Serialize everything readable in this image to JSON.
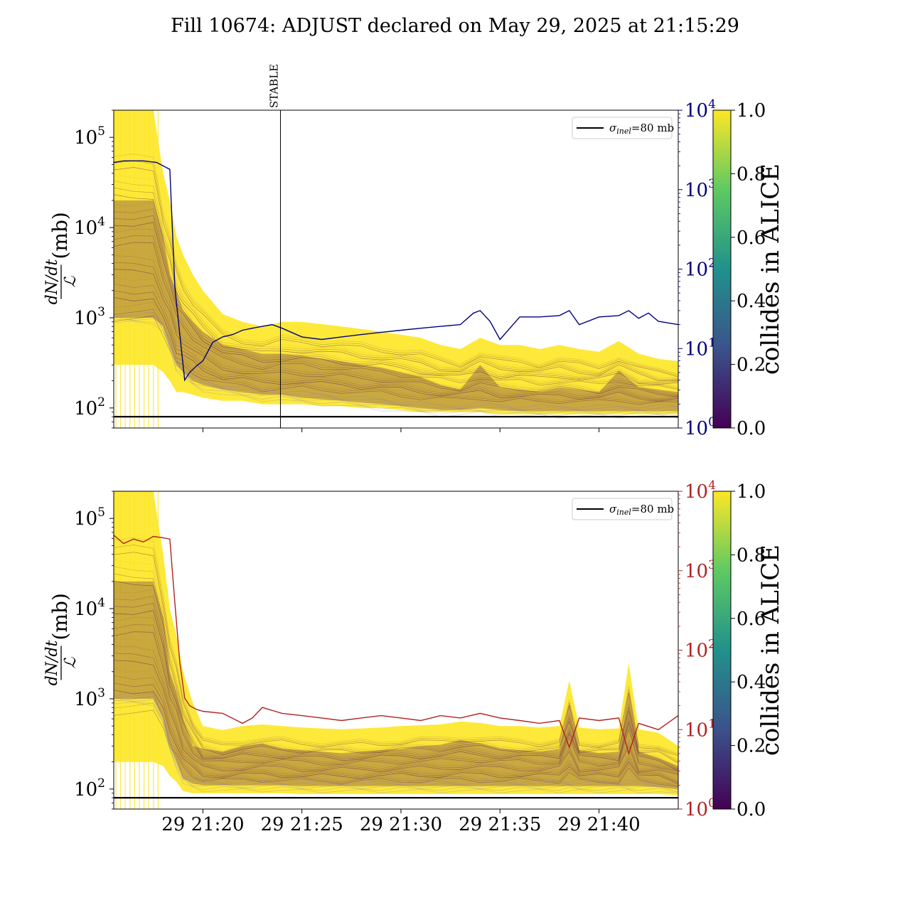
{
  "title": "Fill 10674: ADJUST declared on May 29, 2025 at 21:15:29",
  "colors": {
    "upper_right_axis": "#000080",
    "lower_right_axis": "#b22222",
    "band_high": "#fde725",
    "band_low": "#440154",
    "viridis": [
      "#440154",
      "#3b528b",
      "#21918c",
      "#5ec962",
      "#fde725"
    ]
  },
  "chart_data": [
    {
      "type": "line",
      "panel": "upper",
      "ylabel": "dN/dt / ℒ (mb)",
      "ylabel_parts": {
        "numerator": "dN/dt",
        "denominator": "ℒ",
        "unit": "(mb)"
      },
      "yscale": "log",
      "ylim": [
        60,
        200000
      ],
      "y_ticks": [
        {
          "base": "10",
          "exp": "2",
          "value": 100
        },
        {
          "base": "10",
          "exp": "3",
          "value": 1000
        },
        {
          "base": "10",
          "exp": "4",
          "value": 10000
        },
        {
          "base": "10",
          "exp": "5",
          "value": 100000
        }
      ],
      "xlim": [
        "2025-05-29 21:15:30",
        "2025-05-29 21:44:00"
      ],
      "x_ticks": [],
      "right_axis": {
        "yscale": "log",
        "ylim": [
          1,
          10000
        ],
        "ticks": [
          {
            "base": "10",
            "exp": "0",
            "value": 1
          },
          {
            "base": "10",
            "exp": "1",
            "value": 10
          },
          {
            "base": "10",
            "exp": "2",
            "value": 100
          },
          {
            "base": "10",
            "exp": "3",
            "value": 1000
          },
          {
            "base": "10",
            "exp": "4",
            "value": 10000
          }
        ],
        "color": "#000080"
      },
      "legend": {
        "symbol": "σ",
        "subscript": "inel",
        "value": "=80 mb",
        "placement": "upper right"
      },
      "reference_line": 80,
      "annotation": {
        "label": "STABLE",
        "x": "2025-05-29 21:23:55"
      },
      "colorbar": {
        "label": "collides in ALICE",
        "range": [
          0,
          1
        ],
        "ticks": [
          "0.0",
          "0.2",
          "0.4",
          "0.6",
          "0.8",
          "1.0"
        ]
      },
      "right_series": {
        "x": [
          "21:15:30",
          "21:16:00",
          "21:17:00",
          "21:17:40",
          "21:18:20",
          "21:18:35",
          "21:18:50",
          "21:19:05",
          "21:19:20",
          "21:19:40",
          "21:20:00",
          "21:20:30",
          "21:21:00",
          "21:21:30",
          "21:22:00",
          "21:22:30",
          "21:23:00",
          "21:23:30",
          "21:24:00",
          "21:25:00",
          "21:26:00",
          "21:27:00",
          "21:28:00",
          "21:29:00",
          "21:30:00",
          "21:31:00",
          "21:32:00",
          "21:33:00",
          "21:33:40",
          "21:34:00",
          "21:34:30",
          "21:35:00",
          "21:36:00",
          "21:37:00",
          "21:38:00",
          "21:38:30",
          "21:39:00",
          "21:40:00",
          "21:41:00",
          "21:41:30",
          "21:42:00",
          "21:42:30",
          "21:43:00",
          "21:44:00"
        ],
        "values": [
          2200,
          2300,
          2300,
          2200,
          1800,
          60,
          15,
          4,
          5,
          6,
          7,
          12,
          14,
          15,
          17,
          18,
          19,
          20,
          18,
          14,
          13,
          14,
          15,
          16,
          17,
          18,
          19,
          20,
          28,
          30,
          22,
          13,
          25,
          25,
          26,
          30,
          20,
          25,
          26,
          30,
          24,
          28,
          22,
          20
        ]
      },
      "bands": [
        {
          "color_value": 1.0,
          "x": [
            "21:15:30",
            "21:16:30",
            "21:17:30",
            "21:18:00",
            "21:18:20",
            "21:18:40",
            "21:19:00",
            "21:19:30",
            "21:20:00",
            "21:21:00",
            "21:22:00",
            "21:23:00",
            "21:24:00",
            "21:25:00",
            "21:26:00",
            "21:27:00",
            "21:28:00",
            "21:29:00",
            "21:30:00",
            "21:31:00",
            "21:32:00",
            "21:33:00",
            "21:34:00",
            "21:35:00",
            "21:36:00",
            "21:37:00",
            "21:38:00",
            "21:39:00",
            "21:40:00",
            "21:41:00",
            "21:42:00",
            "21:43:00",
            "21:44:00"
          ],
          "high": [
            200000,
            200000,
            200000,
            40000,
            20000,
            8000,
            5000,
            3000,
            2000,
            1100,
            900,
            800,
            900,
            900,
            850,
            800,
            750,
            700,
            650,
            600,
            500,
            450,
            600,
            500,
            500,
            450,
            500,
            450,
            420,
            550,
            400,
            350,
            330
          ],
          "low": [
            300,
            300,
            300,
            250,
            200,
            150,
            150,
            140,
            130,
            120,
            120,
            110,
            110,
            110,
            105,
            105,
            100,
            100,
            95,
            90,
            90,
            90,
            90,
            85,
            85,
            85,
            85,
            85,
            85,
            85,
            85,
            85,
            85
          ]
        },
        {
          "color_value": 0.0,
          "x": [
            "21:15:30",
            "21:16:30",
            "21:17:30",
            "21:18:00",
            "21:18:20",
            "21:18:40",
            "21:19:00",
            "21:19:30",
            "21:20:00",
            "21:21:00",
            "21:22:00",
            "21:23:00",
            "21:24:00",
            "21:25:00",
            "21:26:00",
            "21:27:00",
            "21:28:00",
            "21:29:00",
            "21:30:00",
            "21:31:00",
            "21:32:00",
            "21:33:00",
            "21:34:00",
            "21:35:00",
            "21:36:00",
            "21:37:00",
            "21:38:00",
            "21:39:00",
            "21:40:00",
            "21:41:00",
            "21:42:00",
            "21:43:00",
            "21:44:00"
          ],
          "high": [
            20000,
            20000,
            20000,
            8000,
            3000,
            2000,
            1200,
            900,
            700,
            500,
            450,
            400,
            400,
            380,
            350,
            330,
            300,
            280,
            250,
            220,
            180,
            160,
            300,
            170,
            160,
            150,
            170,
            160,
            150,
            260,
            170,
            160,
            150
          ],
          "low": [
            1000,
            1000,
            1000,
            800,
            500,
            300,
            250,
            200,
            180,
            160,
            150,
            140,
            140,
            130,
            125,
            120,
            115,
            110,
            105,
            100,
            95,
            95,
            100,
            95,
            92,
            92,
            92,
            92,
            92,
            92,
            92,
            92,
            92
          ]
        }
      ]
    },
    {
      "type": "line",
      "panel": "lower",
      "ylabel": "dN/dt / ℒ (mb)",
      "ylabel_parts": {
        "numerator": "dN/dt",
        "denominator": "ℒ",
        "unit": "(mb)"
      },
      "yscale": "log",
      "ylim": [
        60,
        200000
      ],
      "y_ticks": [
        {
          "base": "10",
          "exp": "2",
          "value": 100
        },
        {
          "base": "10",
          "exp": "3",
          "value": 1000
        },
        {
          "base": "10",
          "exp": "4",
          "value": 10000
        },
        {
          "base": "10",
          "exp": "5",
          "value": 100000
        }
      ],
      "xlim": [
        "2025-05-29 21:15:30",
        "2025-05-29 21:44:00"
      ],
      "x_ticks": [
        {
          "label": "29 21:20",
          "x": "21:20:00"
        },
        {
          "label": "29 21:25",
          "x": "21:25:00"
        },
        {
          "label": "29 21:30",
          "x": "21:30:00"
        },
        {
          "label": "29 21:35",
          "x": "21:35:00"
        },
        {
          "label": "29 21:40",
          "x": "21:40:00"
        }
      ],
      "right_axis": {
        "yscale": "log",
        "ylim": [
          1,
          10000
        ],
        "ticks": [
          {
            "base": "10",
            "exp": "0",
            "value": 1
          },
          {
            "base": "10",
            "exp": "1",
            "value": 10
          },
          {
            "base": "10",
            "exp": "2",
            "value": 100
          },
          {
            "base": "10",
            "exp": "3",
            "value": 1000
          },
          {
            "base": "10",
            "exp": "4",
            "value": 10000
          }
        ],
        "color": "#b22222"
      },
      "legend": {
        "symbol": "σ",
        "subscript": "inel",
        "value": "=80 mb",
        "placement": "upper right"
      },
      "reference_line": 80,
      "colorbar": {
        "label": "collides in ALICE",
        "range": [
          0,
          1
        ],
        "ticks": [
          "0.0",
          "0.2",
          "0.4",
          "0.6",
          "0.8",
          "1.0"
        ]
      },
      "right_series": {
        "x": [
          "21:15:30",
          "21:16:00",
          "21:16:30",
          "21:17:00",
          "21:17:30",
          "21:18:00",
          "21:18:20",
          "21:18:35",
          "21:18:50",
          "21:19:05",
          "21:19:20",
          "21:19:40",
          "21:20:00",
          "21:21:00",
          "21:22:00",
          "21:22:30",
          "21:23:00",
          "21:24:00",
          "21:25:00",
          "21:26:00",
          "21:27:00",
          "21:28:00",
          "21:29:00",
          "21:30:00",
          "21:31:00",
          "21:32:00",
          "21:33:00",
          "21:34:00",
          "21:35:00",
          "21:36:00",
          "21:37:00",
          "21:38:00",
          "21:38:30",
          "21:39:00",
          "21:40:00",
          "21:41:00",
          "21:41:30",
          "21:42:00",
          "21:43:00",
          "21:44:00"
        ],
        "values": [
          2800,
          2200,
          2500,
          2300,
          2700,
          2600,
          2500,
          400,
          70,
          25,
          20,
          18,
          17,
          16,
          12,
          14,
          19,
          16,
          15,
          14,
          13,
          14,
          15,
          14,
          13,
          15,
          14,
          16,
          14,
          13,
          12,
          13,
          6,
          14,
          13,
          14,
          5,
          12,
          10,
          15
        ]
      },
      "bands": [
        {
          "color_value": 1.0,
          "x": [
            "21:15:30",
            "21:16:30",
            "21:17:30",
            "21:18:00",
            "21:18:20",
            "21:18:40",
            "21:19:00",
            "21:19:30",
            "21:20:00",
            "21:21:00",
            "21:22:00",
            "21:23:00",
            "21:24:00",
            "21:25:00",
            "21:26:00",
            "21:27:00",
            "21:28:00",
            "21:29:00",
            "21:30:00",
            "21:31:00",
            "21:32:00",
            "21:33:00",
            "21:34:00",
            "21:35:00",
            "21:36:00",
            "21:37:00",
            "21:38:00",
            "21:38:30",
            "21:39:00",
            "21:40:00",
            "21:41:00",
            "21:41:30",
            "21:42:00",
            "21:43:00",
            "21:44:00"
          ],
          "high": [
            200000,
            200000,
            200000,
            40000,
            10000,
            5000,
            2000,
            900,
            500,
            450,
            500,
            520,
            500,
            480,
            470,
            460,
            470,
            480,
            500,
            510,
            520,
            560,
            540,
            500,
            500,
            480,
            500,
            1600,
            480,
            460,
            470,
            2500,
            460,
            420,
            300
          ],
          "low": [
            200,
            200,
            200,
            180,
            140,
            120,
            95,
            90,
            90,
            90,
            90,
            90,
            90,
            88,
            88,
            88,
            88,
            88,
            88,
            88,
            88,
            88,
            88,
            88,
            88,
            88,
            88,
            88,
            88,
            88,
            88,
            88,
            88,
            88,
            85
          ]
        },
        {
          "color_value": 0.0,
          "x": [
            "21:15:30",
            "21:16:30",
            "21:17:30",
            "21:18:00",
            "21:18:20",
            "21:18:40",
            "21:19:00",
            "21:19:30",
            "21:20:00",
            "21:21:00",
            "21:22:00",
            "21:23:00",
            "21:24:00",
            "21:25:00",
            "21:26:00",
            "21:27:00",
            "21:28:00",
            "21:29:00",
            "21:30:00",
            "21:31:00",
            "21:32:00",
            "21:33:00",
            "21:34:00",
            "21:35:00",
            "21:36:00",
            "21:37:00",
            "21:38:00",
            "21:38:30",
            "21:39:00",
            "21:40:00",
            "21:41:00",
            "21:41:30",
            "21:42:00",
            "21:43:00",
            "21:44:00"
          ],
          "high": [
            20000,
            20000,
            20000,
            8000,
            2000,
            1200,
            600,
            300,
            280,
            260,
            300,
            320,
            280,
            270,
            260,
            250,
            260,
            270,
            280,
            300,
            310,
            350,
            320,
            280,
            270,
            260,
            280,
            900,
            270,
            250,
            260,
            1200,
            260,
            220,
            180
          ],
          "low": [
            1000,
            1000,
            1000,
            600,
            300,
            200,
            130,
            115,
            110,
            110,
            110,
            110,
            110,
            108,
            108,
            108,
            108,
            108,
            108,
            108,
            108,
            108,
            108,
            108,
            108,
            108,
            108,
            108,
            108,
            108,
            108,
            108,
            108,
            105,
            100
          ]
        }
      ]
    }
  ]
}
